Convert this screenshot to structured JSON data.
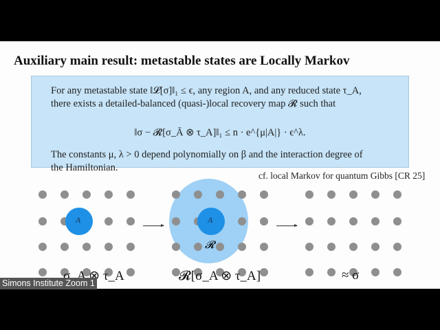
{
  "slide": {
    "title": "Auxiliary main result: metastable states are Locally Markov",
    "theorem": {
      "line1": "For any metastable state ‖𝓛[σ]‖₁ ≤ ϵ, any region A, and any reduced state τ_A,",
      "line2": "there exists a detailed-balanced (quasi-)local recovery map 𝓡 such that",
      "equation": "‖σ − 𝓡[σ_Ā ⊗ τ_A]‖₁ ≤ n · e^{μ|A|} · ϵ^λ.",
      "line3": "The constants μ, λ > 0 depend polynomially on β and the interaction degree of",
      "line4": "the Hamiltonian."
    },
    "reference": "cf. local Markov for quantum Gibbs [CR 25]",
    "figure": {
      "region_label": "A",
      "recovery_label": "𝓡",
      "captions": [
        "σ_A ⊗ τ_A",
        "𝓡[σ_A ⊗ τ_A]",
        "≈ σ"
      ],
      "colors": {
        "region": "#1e90e6",
        "recovery": "#9fd0f5",
        "site": "#8f8f8f",
        "box": "#c7e4f8"
      }
    }
  },
  "overlay": {
    "participant_label": "Simons Institute Zoom 1"
  }
}
